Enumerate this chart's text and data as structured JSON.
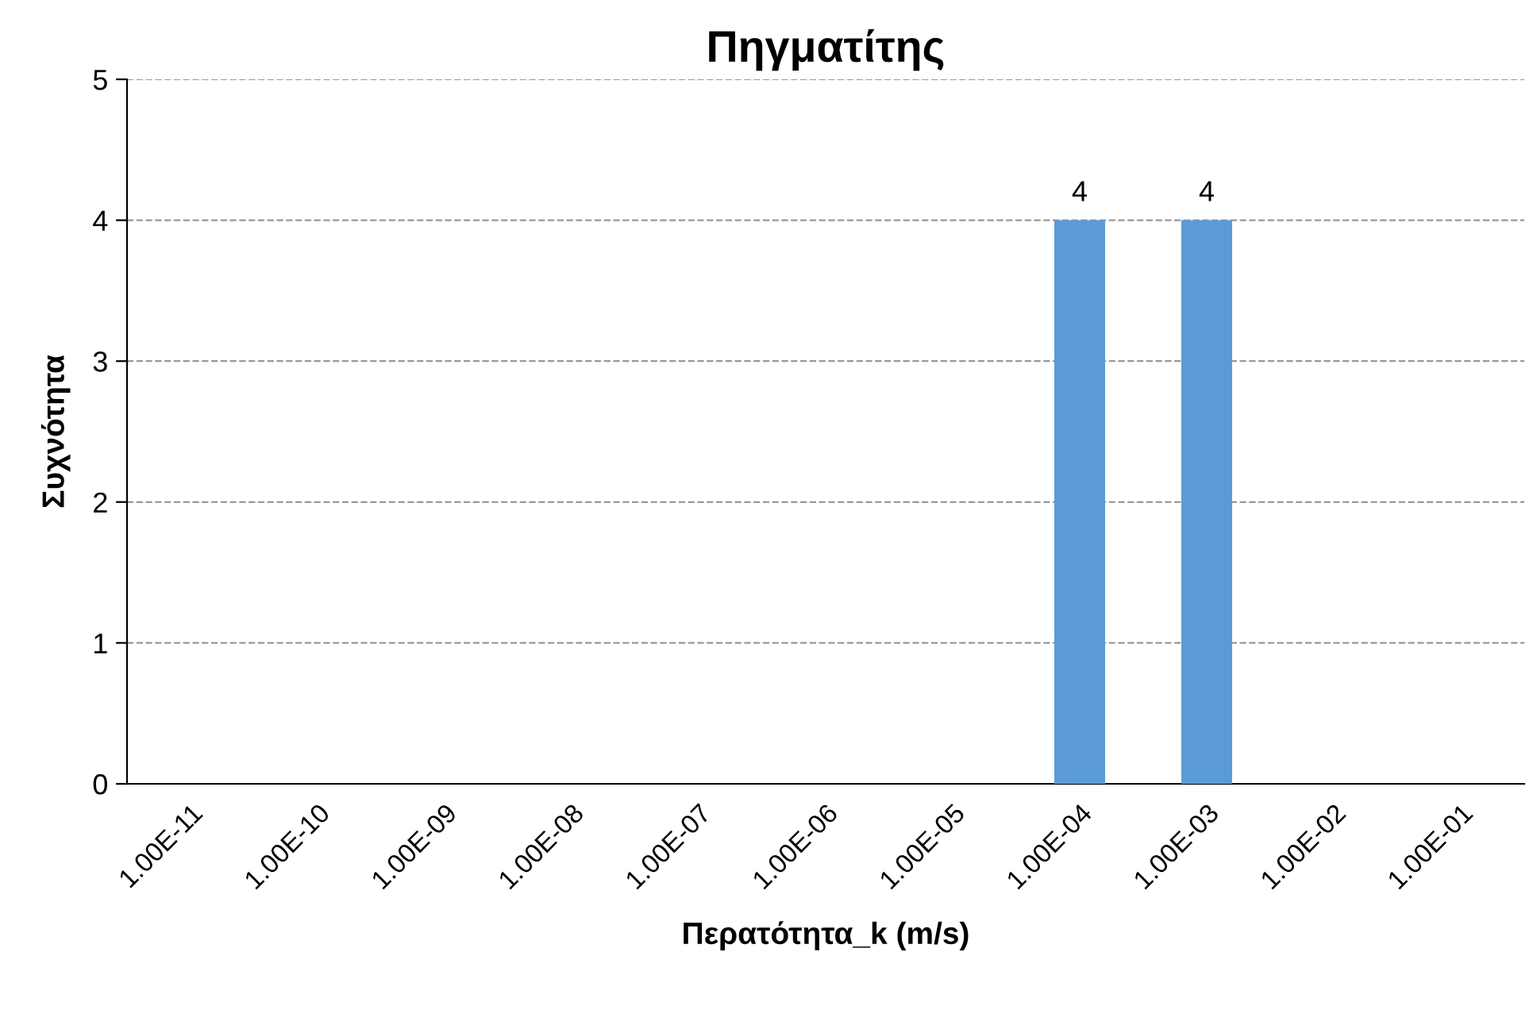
{
  "chart_data": {
    "type": "bar",
    "title": "Πηγματίτης",
    "xlabel": "Περατότητα_k (m/s)",
    "ylabel": "Συχνότητα",
    "categories": [
      "1.00E-11",
      "1.00E-10",
      "1.00E-09",
      "1.00E-08",
      "1.00E-07",
      "1.00E-06",
      "1.00E-05",
      "1.00E-04",
      "1.00E-03",
      "1.00E-02",
      "1.00E-01"
    ],
    "values": [
      0,
      0,
      0,
      0,
      0,
      0,
      0,
      4,
      4,
      0,
      0
    ],
    "value_labels": [
      null,
      null,
      null,
      null,
      null,
      null,
      null,
      "4",
      "4",
      null,
      null
    ],
    "color": "#5b9bd5",
    "ylim": [
      0,
      5
    ],
    "yticks": [
      0,
      1,
      2,
      3,
      4,
      5
    ],
    "grid": "y"
  }
}
